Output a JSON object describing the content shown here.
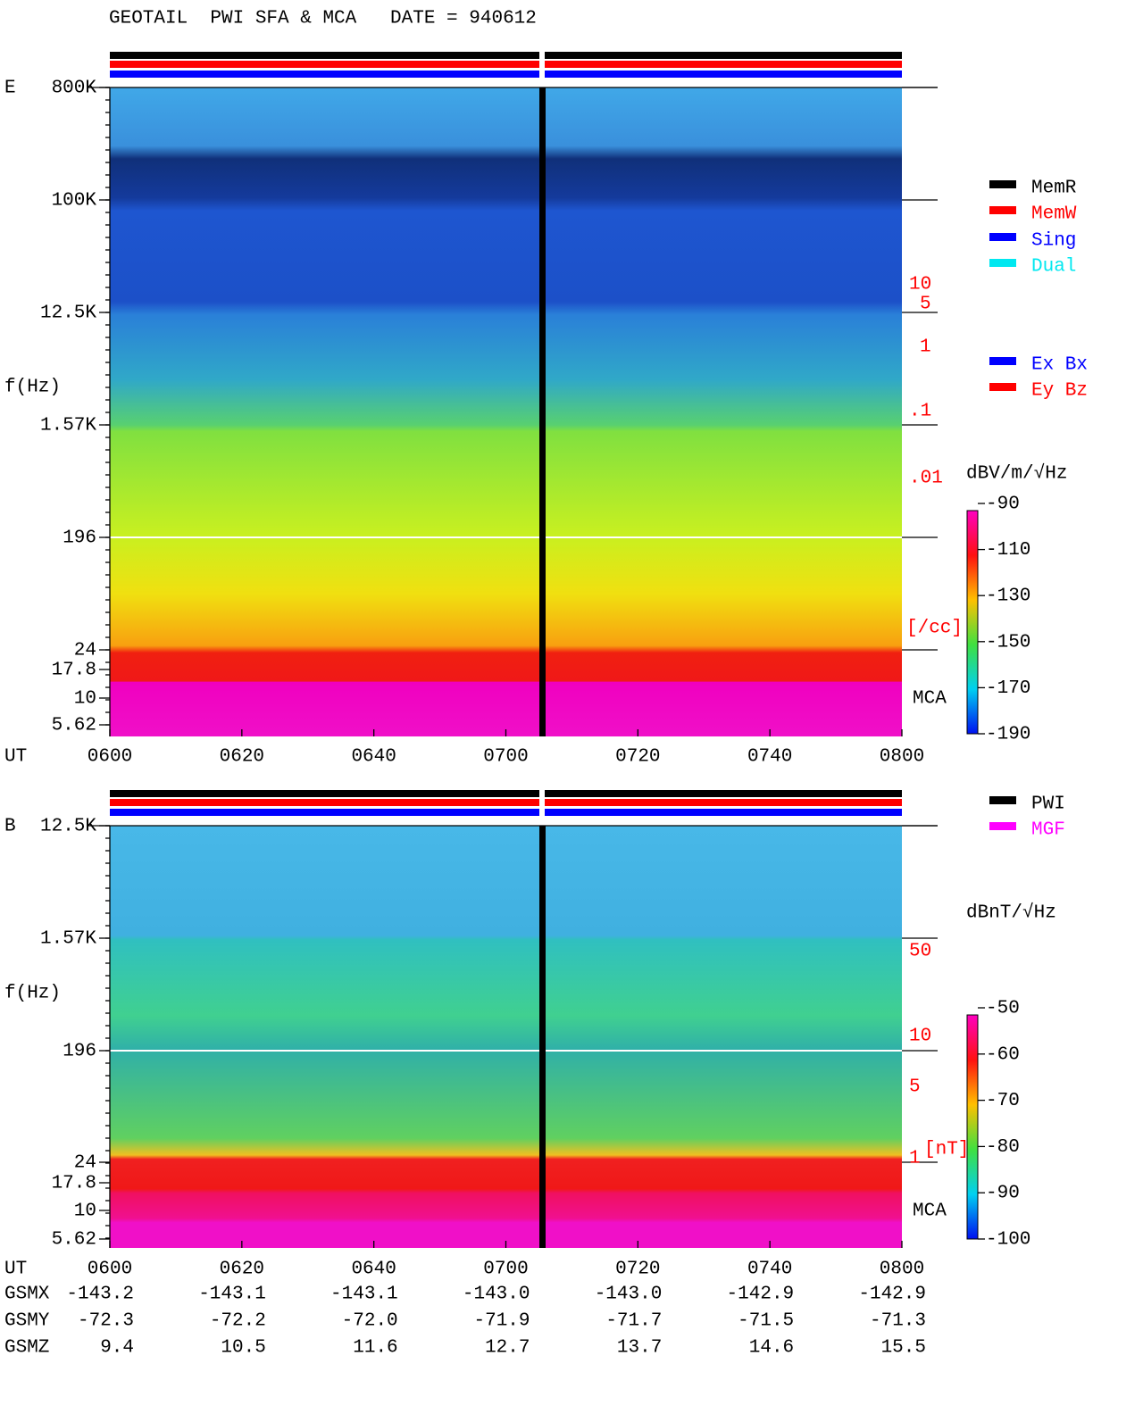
{
  "title": "GEOTAIL  PWI SFA & MCA   DATE = 940612",
  "panels": [
    {
      "label": "E",
      "yaxis_title": "f(Hz)",
      "yticks": [
        "800K",
        "100K",
        "12.5K",
        "1.57K",
        "196",
        "24",
        "17.8",
        "10",
        "5.62"
      ],
      "xaxis_title": "UT",
      "xticks": [
        "0600",
        "0620",
        "0640",
        "0700",
        "0720",
        "0740",
        "0800"
      ],
      "right_labels": [
        "10",
        "5",
        "1",
        ".1",
        ".01",
        "[/cc]"
      ],
      "mca_label": "MCA",
      "legend": [
        {
          "name": "MemR",
          "color": "#000000"
        },
        {
          "name": "MemW",
          "color": "#ff0000"
        },
        {
          "name": "Sing",
          "color": "#0000ff"
        },
        {
          "name": "Dual",
          "color": "#00e8f0"
        }
      ],
      "legend2": [
        {
          "name": "Ex Bx",
          "color": "#0000ff"
        },
        {
          "name": "Ey Bz",
          "color": "#ff0000"
        }
      ],
      "colorbar": {
        "title": "dBV/m/√Hz",
        "ticks": [
          -90,
          -110,
          -130,
          -150,
          -170,
          -190
        ]
      }
    },
    {
      "label": "B",
      "yaxis_title": "f(Hz)",
      "yticks": [
        "12.5K",
        "1.57K",
        "196",
        "24",
        "17.8",
        "10",
        "5.62"
      ],
      "xaxis_title": "UT",
      "xticks": [
        "0600",
        "0620",
        "0640",
        "0700",
        "0720",
        "0740",
        "0800"
      ],
      "right_labels": [
        "50",
        "10",
        "5",
        "1",
        "[nT]"
      ],
      "mca_label": "MCA",
      "legend": [
        {
          "name": "PWI",
          "color": "#000000"
        },
        {
          "name": "MGF",
          "color": "#ff00ff"
        }
      ],
      "colorbar": {
        "title": "dBnT/√Hz",
        "ticks": [
          -50,
          -60,
          -70,
          -80,
          -90,
          -100
        ]
      }
    }
  ],
  "orbit": {
    "rows": [
      {
        "label": "GSMX",
        "values": [
          "-143.2",
          "-143.1",
          "-143.1",
          "-143.0",
          "-143.0",
          "-142.9",
          "-142.9"
        ]
      },
      {
        "label": "GSMY",
        "values": [
          "-72.3",
          "-72.2",
          "-72.0",
          "-71.9",
          "-71.7",
          "-71.5",
          "-71.3"
        ]
      },
      {
        "label": "GSMZ",
        "values": [
          "9.4",
          "10.5",
          "11.6",
          "12.7",
          "13.7",
          "14.6",
          "15.5"
        ]
      }
    ]
  }
}
